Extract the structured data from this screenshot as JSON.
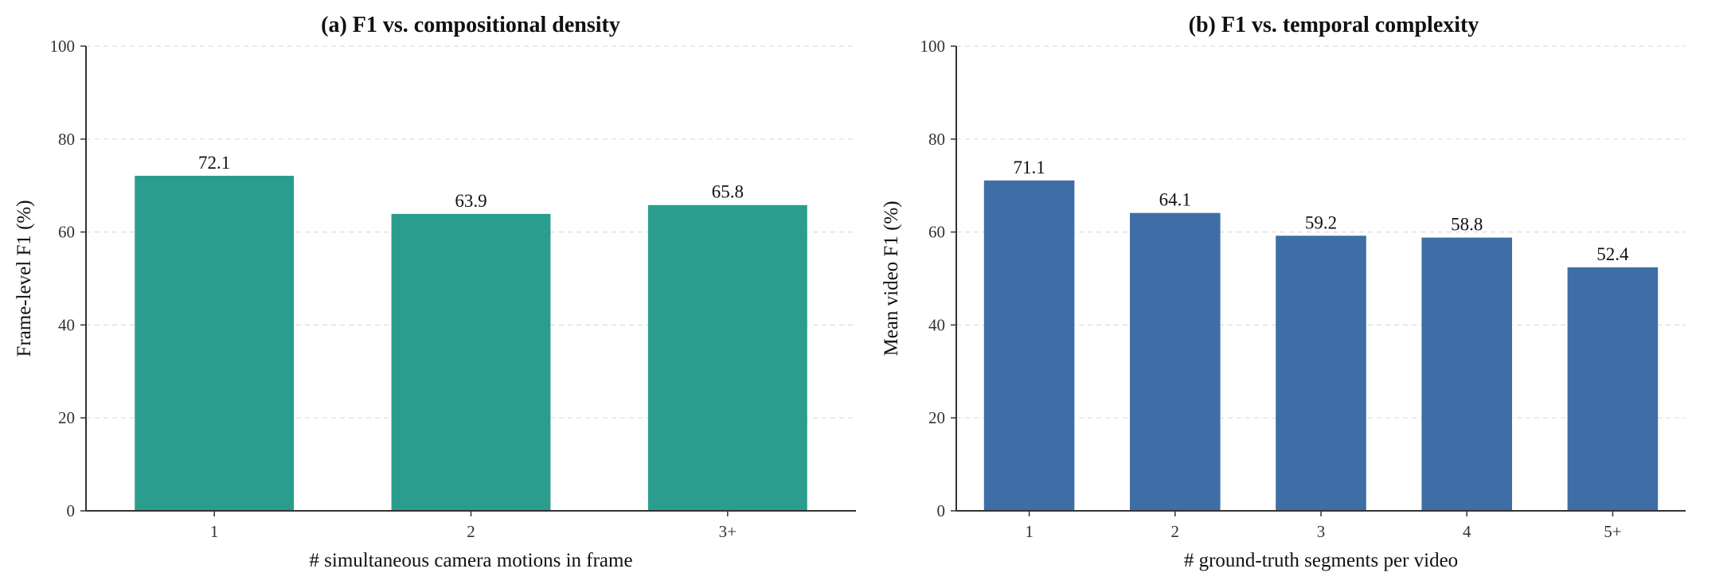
{
  "chart_data": [
    {
      "type": "bar",
      "title": "(a) F1 vs. compositional density",
      "xlabel": "# simultaneous camera motions in frame",
      "ylabel": "Frame-level F1 (%)",
      "categories": [
        "1",
        "2",
        "3+"
      ],
      "values": [
        72.1,
        63.9,
        65.8
      ],
      "data_labels": [
        "72.1",
        "63.9",
        "65.8"
      ],
      "ylim": [
        0,
        100
      ],
      "yticks": [
        0,
        20,
        40,
        60,
        80,
        100
      ],
      "grid": "horizontal dashed",
      "color": "#2a9d8f"
    },
    {
      "type": "bar",
      "title": "(b) F1 vs. temporal complexity",
      "xlabel": "# ground-truth segments per video",
      "ylabel": "Mean video F1 (%)",
      "categories": [
        "1",
        "2",
        "3",
        "4",
        "5+"
      ],
      "values": [
        71.1,
        64.1,
        59.2,
        58.8,
        52.4
      ],
      "data_labels": [
        "71.1",
        "64.1",
        "59.2",
        "58.8",
        "52.4"
      ],
      "ylim": [
        0,
        100
      ],
      "yticks": [
        0,
        20,
        40,
        60,
        80,
        100
      ],
      "grid": "horizontal dashed",
      "color": "#3f6ea6"
    }
  ]
}
